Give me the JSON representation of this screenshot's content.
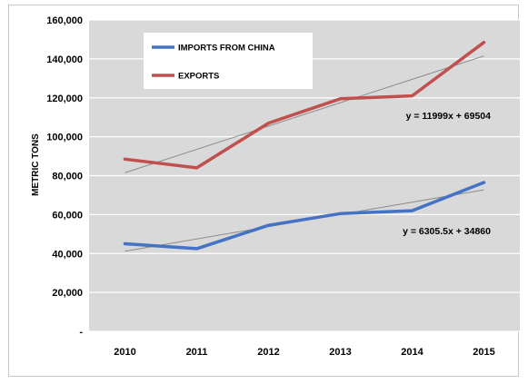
{
  "chart_data": {
    "type": "line",
    "title": "",
    "ylabel": "METRIC TONS",
    "xlabel": "",
    "categories": [
      "2010",
      "2011",
      "2012",
      "2013",
      "2014",
      "2015"
    ],
    "ylim": [
      0,
      160000
    ],
    "yticks": [
      0,
      20000,
      40000,
      60000,
      80000,
      100000,
      120000,
      140000,
      160000
    ],
    "ytick_labels": [
      "-",
      "20,000",
      "40,000",
      "60,000",
      "80,000",
      "100,000",
      "120,000",
      "140,000",
      "160,000"
    ],
    "grid": true,
    "legend_position": "top-left",
    "series": [
      {
        "name": "IMPORTS FROM CHINA",
        "color": "#4472C4",
        "values": [
          45000,
          42500,
          54500,
          60500,
          62000,
          76500
        ]
      },
      {
        "name": "EXPORTS",
        "color": "#C0504D",
        "values": [
          88500,
          84000,
          107000,
          119500,
          121000,
          148500
        ]
      }
    ],
    "trendlines": [
      {
        "series": "IMPORTS FROM CHINA",
        "slope": 6305.5,
        "intercept": 34860,
        "label": "y = 6305.5x + 34860"
      },
      {
        "series": "EXPORTS",
        "slope": 11999,
        "intercept": 69504,
        "label": "y = 11999x + 69504"
      }
    ],
    "trendline_color": "#8c8c8c",
    "plot_background": "#d9d9d9"
  }
}
